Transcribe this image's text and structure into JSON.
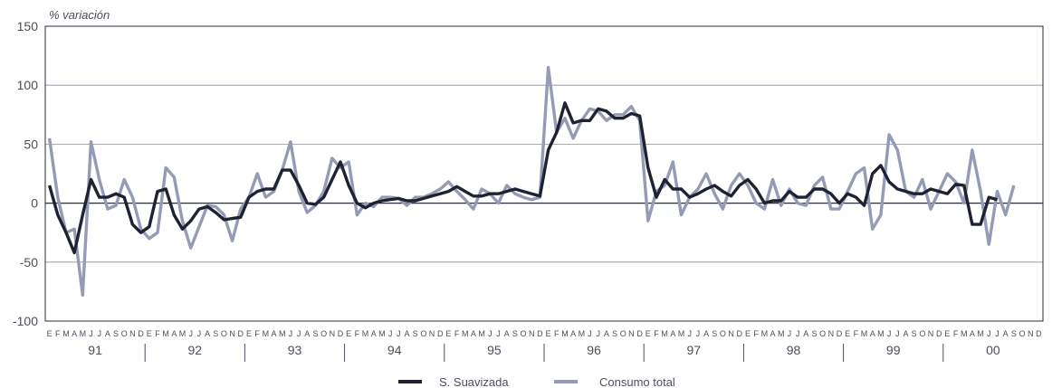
{
  "chart_data": {
    "type": "line",
    "ylabel": "% variación",
    "xlabel": "",
    "ylim": [
      -100,
      150
    ],
    "y_ticks": [
      "150",
      "100",
      "50",
      "0",
      "-50",
      "-100"
    ],
    "y_tick_values": [
      150,
      100,
      50,
      0,
      -50,
      -100
    ],
    "month_letters": [
      "E",
      "F",
      "M",
      "A",
      "M",
      "J",
      "J",
      "A",
      "S",
      "O",
      "N",
      "D"
    ],
    "years": [
      "91",
      "92",
      "93",
      "94",
      "95",
      "96",
      "97",
      "98",
      "99",
      "00"
    ],
    "grid": true,
    "legend_position": "bottom-center",
    "series": [
      {
        "name": "S. Suavizada",
        "color": "#1e2233",
        "values": [
          15,
          -10,
          -25,
          -42,
          -10,
          20,
          5,
          5,
          8,
          5,
          -18,
          -25,
          -20,
          10,
          12,
          -10,
          -22,
          -15,
          -5,
          -3,
          -8,
          -14,
          -13,
          -12,
          5,
          10,
          12,
          12,
          28,
          28,
          15,
          0,
          -1,
          5,
          20,
          35,
          15,
          0,
          -4,
          0,
          2,
          3,
          4,
          2,
          2,
          4,
          6,
          8,
          10,
          14,
          10,
          6,
          6,
          8,
          8,
          10,
          12,
          10,
          8,
          6,
          45,
          60,
          85,
          68,
          70,
          70,
          80,
          78,
          72,
          72,
          76,
          74,
          30,
          5,
          20,
          12,
          12,
          5,
          8,
          12,
          15,
          10,
          6,
          15,
          20,
          12,
          0,
          2,
          2,
          10,
          5,
          5,
          12,
          12,
          8,
          0,
          8,
          5,
          -2,
          25,
          32,
          18,
          12,
          10,
          8,
          8,
          12,
          10,
          8,
          16,
          15,
          -18,
          -18,
          5,
          3
        ]
      },
      {
        "name": "Consumo total",
        "color": "#959bb5",
        "values": [
          55,
          5,
          -25,
          -22,
          -78,
          52,
          20,
          -5,
          -2,
          20,
          5,
          -22,
          -30,
          -25,
          30,
          22,
          -15,
          -38,
          -20,
          -2,
          -3,
          -10,
          -32,
          -5,
          5,
          25,
          5,
          10,
          28,
          52,
          10,
          -8,
          -2,
          10,
          38,
          30,
          35,
          -10,
          0,
          -3,
          5,
          5,
          4,
          -2,
          5,
          5,
          8,
          12,
          18,
          10,
          3,
          -5,
          12,
          8,
          0,
          15,
          8,
          5,
          3,
          5,
          115,
          60,
          72,
          55,
          70,
          80,
          78,
          70,
          75,
          75,
          82,
          70,
          -15,
          10,
          15,
          35,
          -10,
          5,
          12,
          25,
          8,
          -5,
          15,
          25,
          15,
          0,
          -5,
          20,
          -2,
          12,
          0,
          -2,
          15,
          22,
          -5,
          -5,
          10,
          25,
          30,
          -22,
          -10,
          58,
          45,
          10,
          5,
          20,
          -5,
          10,
          25,
          18,
          0,
          45,
          10,
          -35,
          10,
          -10,
          15
        ]
      }
    ]
  }
}
